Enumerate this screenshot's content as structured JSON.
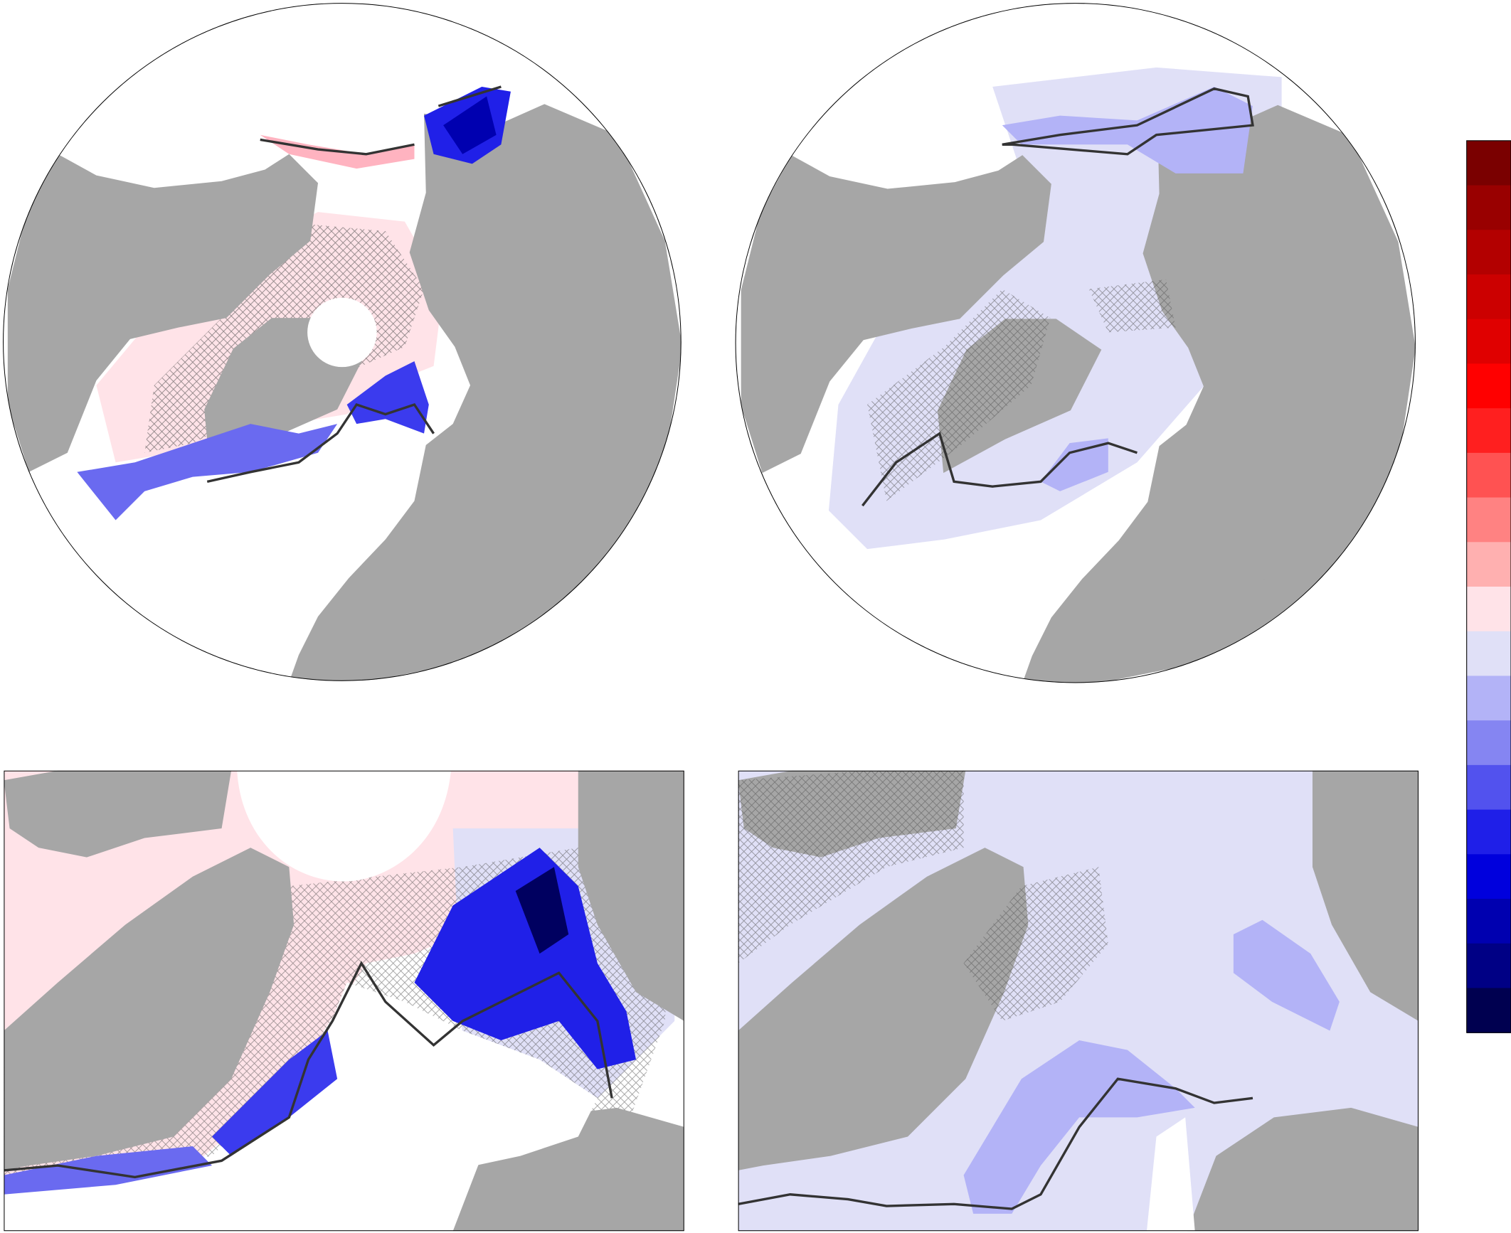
{
  "colorbar": {
    "colors": [
      "#7a0000",
      "#990000",
      "#b30000",
      "#cc0000",
      "#e00000",
      "#ff0000",
      "#ff1f1f",
      "#ff5252",
      "#ff8282",
      "#ffb0b0",
      "#ffe3e8",
      "#e0e0f7",
      "#b3b3f7",
      "#8585f2",
      "#5252ee",
      "#1f1fe8",
      "#0000dd",
      "#0000b0",
      "#000085",
      "#000050"
    ]
  }
}
